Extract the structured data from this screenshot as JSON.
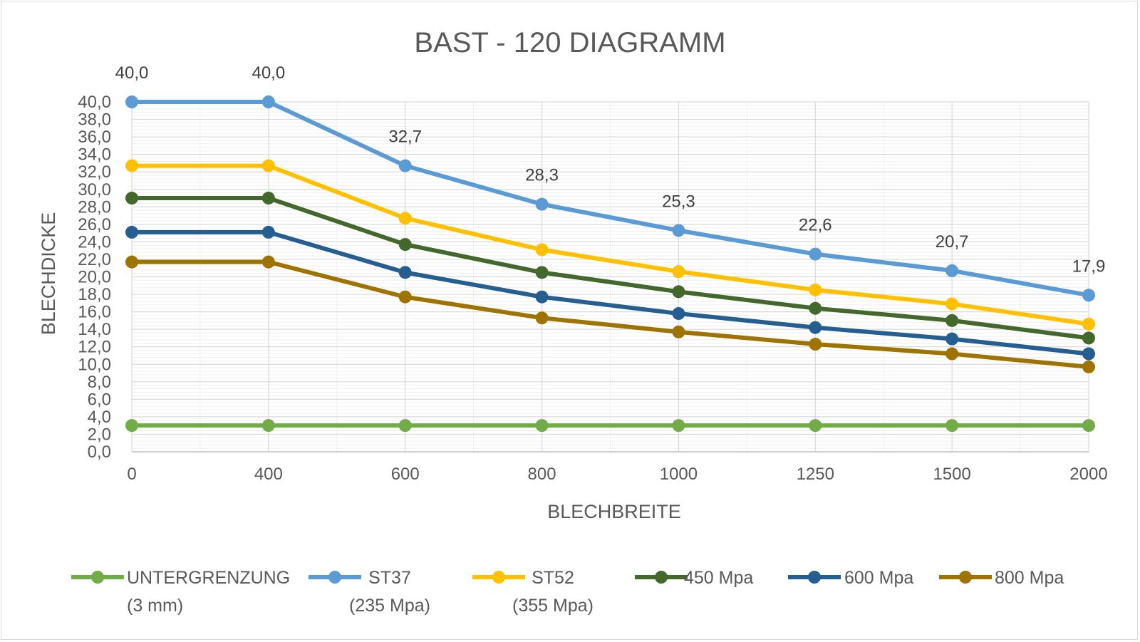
{
  "chart_data": {
    "type": "line",
    "title": "BAST - 120 DIAGRAMM",
    "xlabel": "BLECHBREITE",
    "ylabel": "BLECHDICKE",
    "categories": [
      "0",
      "400",
      "600",
      "800",
      "1000",
      "1250",
      "1500",
      "2000"
    ],
    "ylim": [
      0,
      40
    ],
    "y_major_step": 2,
    "y_tick_labels": [
      "0,0",
      "2,0",
      "4,0",
      "6,0",
      "8,0",
      "10,0",
      "12,0",
      "14,0",
      "16,0",
      "18,0",
      "20,0",
      "22,0",
      "24,0",
      "26,0",
      "28,0",
      "30,0",
      "32,0",
      "34,0",
      "36,0",
      "38,0",
      "40,0"
    ],
    "grid": true,
    "legend_position": "bottom",
    "series": [
      {
        "name": "UNTERGRENZUNG (3 mm)",
        "legend_lines": [
          "UNTERGRENZUNG",
          "(3 mm)"
        ],
        "color": "#70ad47",
        "values": [
          3,
          3,
          3,
          3,
          3,
          3,
          3,
          3
        ]
      },
      {
        "name": "ST37 (235 Mpa)",
        "legend_lines": [
          "ST37",
          "(235 Mpa)"
        ],
        "color": "#5b9bd5",
        "values": [
          40.0,
          40.0,
          32.7,
          28.3,
          25.3,
          22.6,
          20.7,
          17.9
        ],
        "data_labels": [
          "40,0",
          "40,0",
          "32,7",
          "28,3",
          "25,3",
          "22,6",
          "20,7",
          "17,9"
        ]
      },
      {
        "name": "ST52 (355 Mpa)",
        "legend_lines": [
          "ST52",
          "(355 Mpa)"
        ],
        "color": "#ffc000",
        "values": [
          32.7,
          32.7,
          26.7,
          23.1,
          20.6,
          18.5,
          16.9,
          14.6
        ]
      },
      {
        "name": "450  Mpa",
        "legend_lines": [
          "450  Mpa"
        ],
        "color": "#43682b",
        "values": [
          29.0,
          29.0,
          23.7,
          20.5,
          18.3,
          16.4,
          15.0,
          13.0
        ]
      },
      {
        "name": "600 Mpa",
        "legend_lines": [
          "600 Mpa"
        ],
        "color": "#255e91",
        "values": [
          25.1,
          25.1,
          20.5,
          17.7,
          15.8,
          14.2,
          12.9,
          11.2
        ]
      },
      {
        "name": "800 Mpa",
        "legend_lines": [
          "800 Mpa"
        ],
        "color": "#9e7300",
        "values": [
          21.7,
          21.7,
          17.7,
          15.3,
          13.7,
          12.3,
          11.2,
          9.7
        ]
      }
    ]
  }
}
